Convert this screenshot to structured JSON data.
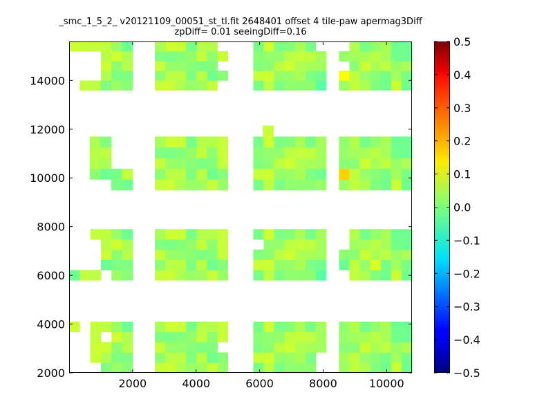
{
  "figure": {
    "title_line1": "_smc_1_5_2_ v20121109_00051_st_tl.fit 2648401 offset 4 tile-paw apermag3Diff",
    "title_line2": "zpDiff= 0.01 seeingDiff=0.16"
  },
  "chart_data": {
    "type": "heatmap",
    "title": "_smc_1_5_2_ v20121109_00051_st_tl.fit 2648401 offset 4 tile-paw apermag3Diff zpDiff= 0.01 seeingDiff=0.16",
    "xlabel": "",
    "ylabel": "",
    "xlim": [
      0,
      10800
    ],
    "ylim": [
      2000,
      15600
    ],
    "xticks": [
      2000,
      4000,
      6000,
      8000,
      10000
    ],
    "yticks": [
      2000,
      4000,
      6000,
      8000,
      10000,
      12000,
      14000
    ],
    "colormap": "jet",
    "colorbar": {
      "range": [
        -0.5,
        0.5
      ],
      "ticks": [
        0.5,
        0.4,
        0.3,
        0.2,
        0.1,
        0.0,
        -0.1,
        -0.2,
        -0.3,
        -0.4,
        -0.5
      ],
      "tick_labels": [
        "0.5",
        "0.4",
        "0.3",
        "0.2",
        "0.1",
        "0.0",
        "−0.1",
        "−0.2",
        "−0.3",
        "−0.4",
        "−0.5"
      ]
    },
    "grid": false,
    "cell_size": {
      "x": 335,
      "y": 425
    },
    "default_value": 0.03,
    "tiles": [
      {
        "x0": 0,
        "x1": 2000,
        "y0": 13600,
        "y1": 15600
      },
      {
        "x0": 2700,
        "x1": 5000,
        "y0": 13600,
        "y1": 15600
      },
      {
        "x0": 5800,
        "x1": 8100,
        "y0": 13600,
        "y1": 15600
      },
      {
        "x0": 8500,
        "x1": 10800,
        "y0": 13600,
        "y1": 15600
      },
      {
        "x0": 650,
        "x1": 2000,
        "y0": 9500,
        "y1": 11700
      },
      {
        "x0": 2700,
        "x1": 5000,
        "y0": 9500,
        "y1": 11700
      },
      {
        "x0": 5800,
        "x1": 8100,
        "y0": 9500,
        "y1": 11700
      },
      {
        "x0": 8500,
        "x1": 10800,
        "y0": 9500,
        "y1": 11700
      },
      {
        "x0": 0,
        "x1": 2000,
        "y0": 5800,
        "y1": 7900
      },
      {
        "x0": 2700,
        "x1": 5000,
        "y0": 5800,
        "y1": 7900
      },
      {
        "x0": 5800,
        "x1": 8100,
        "y0": 5800,
        "y1": 7900
      },
      {
        "x0": 8500,
        "x1": 10800,
        "y0": 5800,
        "y1": 7900
      },
      {
        "x0": 0,
        "x1": 2000,
        "y0": 2000,
        "y1": 4100
      },
      {
        "x0": 2700,
        "x1": 5000,
        "y0": 2000,
        "y1": 4100
      },
      {
        "x0": 5800,
        "x1": 8100,
        "y0": 2000,
        "y1": 4100
      },
      {
        "x0": 8500,
        "x1": 10800,
        "y0": 2000,
        "y1": 4100
      }
    ],
    "gaps": [
      {
        "x0": 0,
        "x1": 1000,
        "y0": 13900,
        "y1": 15200
      },
      {
        "x0": 0,
        "x1": 350,
        "y0": 13600,
        "y1": 13900
      },
      {
        "x0": 4700,
        "x1": 5000,
        "y0": 15200,
        "y1": 15600
      },
      {
        "x0": 4700,
        "x1": 5000,
        "y0": 14300,
        "y1": 14800
      },
      {
        "x0": 4700,
        "x1": 5000,
        "y0": 13600,
        "y1": 13900
      },
      {
        "x0": 7700,
        "x1": 8100,
        "y0": 15200,
        "y1": 15600
      },
      {
        "x0": 8500,
        "x1": 8800,
        "y0": 15200,
        "y1": 15600
      },
      {
        "x0": 8500,
        "x1": 8800,
        "y0": 14300,
        "y1": 14800
      },
      {
        "x0": 650,
        "x1": 1350,
        "y0": 9500,
        "y1": 9900
      },
      {
        "x0": 1350,
        "x1": 2000,
        "y0": 10400,
        "y1": 11700
      },
      {
        "x0": 0,
        "x1": 650,
        "y0": 7500,
        "y1": 7900
      },
      {
        "x0": 0,
        "x1": 1000,
        "y0": 6200,
        "y1": 7500
      },
      {
        "x0": 1000,
        "x1": 1350,
        "y0": 5800,
        "y1": 6200
      },
      {
        "x0": 5800,
        "x1": 6150,
        "y0": 7100,
        "y1": 7500
      },
      {
        "x0": 8500,
        "x1": 8800,
        "y0": 7100,
        "y1": 7900
      },
      {
        "x0": 8500,
        "x1": 8800,
        "y0": 5800,
        "y1": 6200
      },
      {
        "x0": 0,
        "x1": 350,
        "y0": 2000,
        "y1": 3700
      },
      {
        "x0": 350,
        "x1": 650,
        "y0": 2000,
        "y1": 4100
      },
      {
        "x0": 650,
        "x1": 1000,
        "y0": 2000,
        "y1": 2400
      },
      {
        "x0": 1000,
        "x1": 1350,
        "y0": 3250,
        "y1": 3650
      },
      {
        "x0": 4700,
        "x1": 5000,
        "y0": 2850,
        "y1": 3250
      },
      {
        "x0": 7700,
        "x1": 8100,
        "y0": 2000,
        "y1": 2850
      }
    ],
    "extras": [
      {
        "x0": 6100,
        "x1": 6450,
        "y0": 11700,
        "y1": 12150,
        "value": 0.07
      }
    ],
    "overrides": [
      {
        "x": 8700,
        "y": 14100,
        "value": 0.12
      },
      {
        "x": 8700,
        "y": 10300,
        "value": 0.17
      },
      {
        "x": 9800,
        "y": 6350,
        "value": 0.09
      },
      {
        "x": 7900,
        "y": 13900,
        "value": -0.04
      },
      {
        "x": 7900,
        "y": 6000,
        "value": -0.04
      },
      {
        "x": 1300,
        "y": 10300,
        "value": -0.02
      },
      {
        "x": 1300,
        "y": 6350,
        "value": -0.02
      },
      {
        "x": 8700,
        "y": 6350,
        "value": -0.02
      }
    ]
  }
}
